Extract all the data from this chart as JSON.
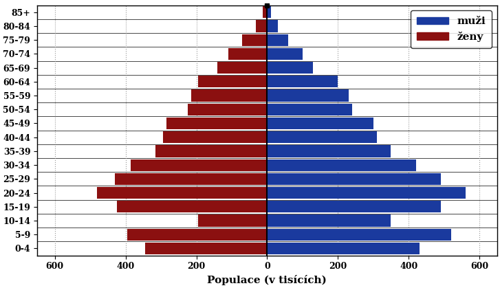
{
  "age_groups": [
    "85+",
    "80-84",
    "75-79",
    "70-74",
    "65-69",
    "60-64",
    "55-59",
    "50-54",
    "45-49",
    "40-44",
    "35-39",
    "30-34",
    "25-29",
    "20-24",
    "15-19",
    "10-14",
    "5-9",
    "0-4"
  ],
  "males": [
    10,
    30,
    60,
    100,
    130,
    200,
    230,
    240,
    300,
    310,
    350,
    420,
    490,
    560,
    490,
    350,
    520,
    430
  ],
  "females": [
    12,
    32,
    70,
    110,
    140,
    195,
    215,
    225,
    285,
    295,
    315,
    385,
    430,
    480,
    425,
    195,
    395,
    345
  ],
  "male_color": "#1a3a9e",
  "female_color": "#8b1010",
  "xlabel": "Populace (v tisících)",
  "xlim": 650,
  "grid_color": "#999999",
  "legend_labels": [
    "muži",
    "ženy"
  ],
  "bar_height": 0.85,
  "label_fontsize": 11,
  "tick_fontsize": 9,
  "legend_fontsize": 11
}
